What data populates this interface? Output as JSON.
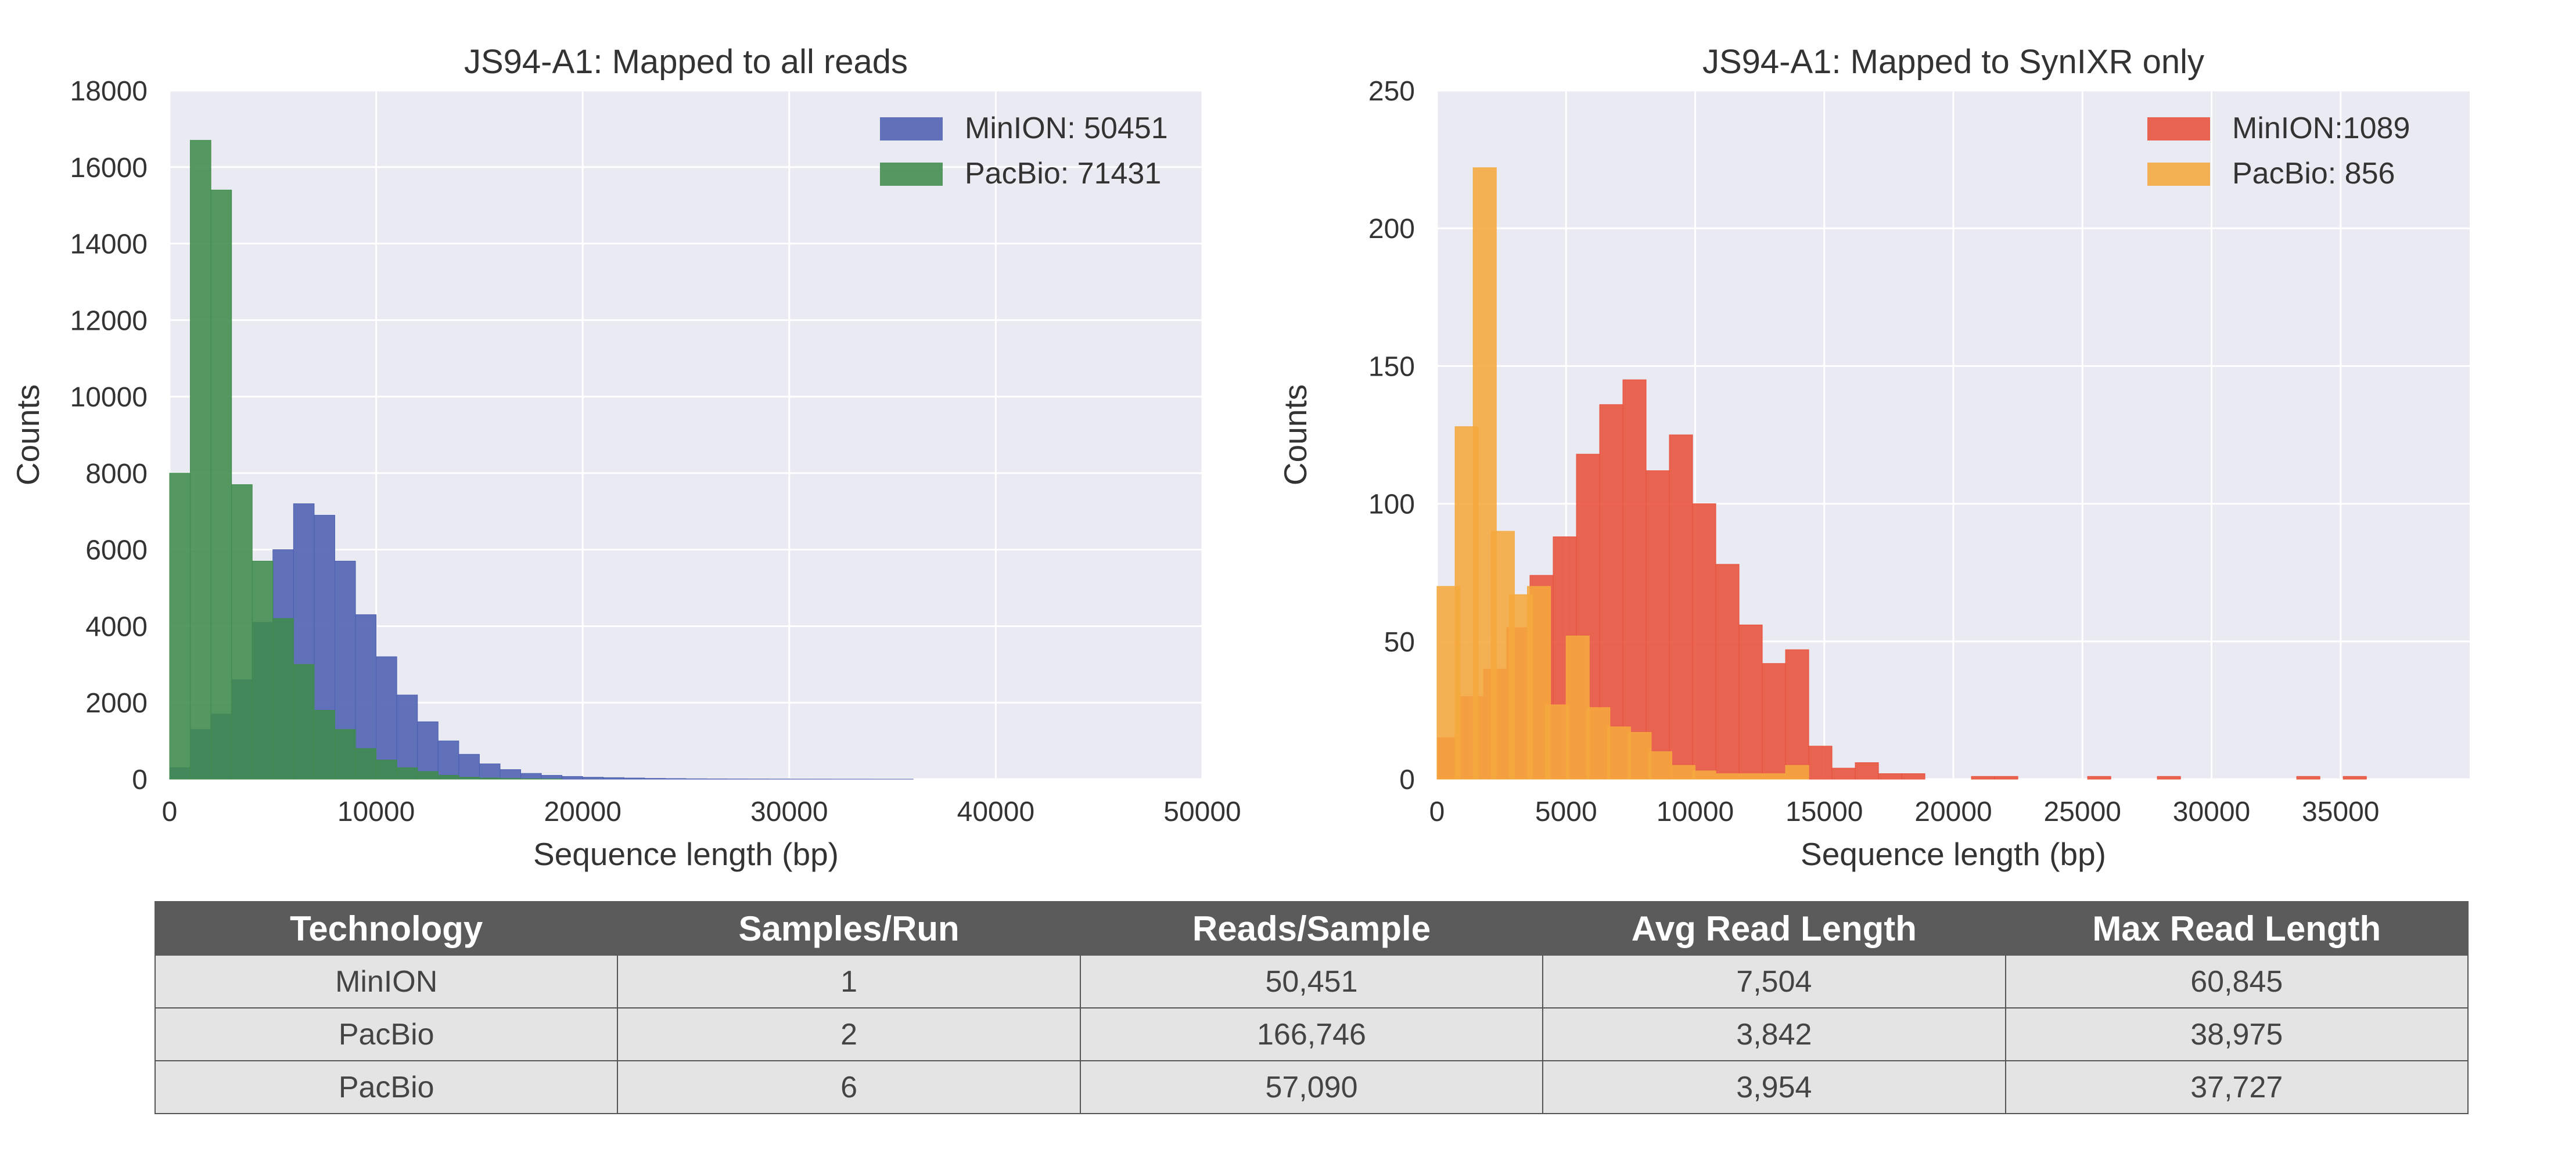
{
  "chart_data": [
    {
      "type": "histogram",
      "title": "JS94-A1: Mapped to all reads",
      "xlabel": "Sequence length (bp)",
      "ylabel": "Counts",
      "xlim": [
        0,
        50000
      ],
      "ylim": [
        0,
        18000
      ],
      "xticks": [
        0,
        10000,
        20000,
        30000,
        40000,
        50000
      ],
      "yticks": [
        0,
        2000,
        4000,
        6000,
        8000,
        10000,
        12000,
        14000,
        16000,
        18000
      ],
      "grid": true,
      "legend": "top-right",
      "bin_width": 1000,
      "series": [
        {
          "name": "MinION: 50451",
          "color": "#4c5fb0",
          "bin_starts": [
            0,
            1000,
            2000,
            3000,
            4000,
            5000,
            6000,
            7000,
            8000,
            9000,
            10000,
            11000,
            12000,
            13000,
            14000,
            15000,
            16000,
            17000,
            18000,
            19000,
            20000,
            21000,
            22000,
            23000,
            24000,
            25000,
            26000,
            27000,
            28000,
            29000,
            30000,
            31000,
            32000,
            33000,
            34000,
            35000
          ],
          "values": [
            300,
            1300,
            1700,
            2600,
            4100,
            6000,
            7200,
            6900,
            5700,
            4300,
            3200,
            2200,
            1500,
            1000,
            650,
            400,
            250,
            150,
            100,
            70,
            50,
            40,
            30,
            20,
            15,
            10,
            8,
            6,
            5,
            4,
            3,
            3,
            2,
            2,
            1,
            1
          ]
        },
        {
          "name": "PacBio: 71431",
          "color": "#3f8b4c",
          "bin_starts": [
            0,
            1000,
            2000,
            3000,
            4000,
            5000,
            6000,
            7000,
            8000,
            9000,
            10000,
            11000,
            12000,
            13000,
            14000,
            15000,
            16000,
            17000,
            18000
          ],
          "values": [
            8000,
            16700,
            15400,
            7700,
            5700,
            4200,
            3000,
            1800,
            1300,
            800,
            500,
            300,
            200,
            100,
            50,
            30,
            20,
            10,
            5
          ]
        }
      ]
    },
    {
      "type": "histogram",
      "title": "JS94-A1: Mapped to SynIXR only",
      "xlabel": "Sequence length (bp)",
      "ylabel": "Counts",
      "xlim": [
        0,
        40000
      ],
      "ylim": [
        0,
        250
      ],
      "xticks": [
        0,
        5000,
        10000,
        15000,
        20000,
        25000,
        30000,
        35000
      ],
      "yticks": [
        0,
        50,
        100,
        150,
        200,
        250
      ],
      "grid": true,
      "legend": "top-right",
      "bin_width": 900,
      "series": [
        {
          "name": "MinION:1089",
          "color": "#e8503a",
          "bin_starts": [
            0,
            900,
            1800,
            2700,
            3600,
            4500,
            5400,
            6300,
            7200,
            8100,
            9000,
            9900,
            10800,
            11700,
            12600,
            13500,
            14400,
            15300,
            16200,
            17100,
            18000,
            18900,
            19800,
            20700,
            21600,
            22500,
            23400,
            24300,
            25200,
            26100,
            27000,
            27900,
            28800,
            29700,
            30600,
            31500,
            32400,
            33300,
            34200,
            35100
          ],
          "values": [
            15,
            30,
            40,
            55,
            74,
            88,
            118,
            136,
            145,
            112,
            125,
            100,
            78,
            56,
            42,
            47,
            12,
            4,
            6,
            2,
            2,
            0,
            0,
            1,
            1,
            0,
            0,
            0,
            1,
            0,
            0,
            1,
            0,
            0,
            0,
            0,
            0,
            1,
            0,
            1
          ]
        },
        {
          "name": "PacBio: 856",
          "color": "#f5a83e",
          "bin_starts": [
            0,
            700,
            1400,
            2100,
            2800,
            3500,
            4200,
            5000,
            5800,
            6600,
            7400,
            8200,
            9100,
            9900,
            10800,
            11700,
            12600,
            13500
          ],
          "values": [
            70,
            128,
            222,
            90,
            67,
            70,
            27,
            52,
            26,
            19,
            17,
            10,
            5,
            3,
            2,
            2,
            2,
            5
          ]
        }
      ]
    }
  ],
  "table": {
    "headers": [
      "Technology",
      "Samples/Run",
      "Reads/Sample",
      "Avg Read Length",
      "Max Read Length"
    ],
    "rows": [
      [
        "MinION",
        "1",
        "50,451",
        "7,504",
        "60,845"
      ],
      [
        "PacBio",
        "2",
        "166,746",
        "3,842",
        "38,975"
      ],
      [
        "PacBio",
        "6",
        "57,090",
        "3,954",
        "37,727"
      ]
    ]
  }
}
